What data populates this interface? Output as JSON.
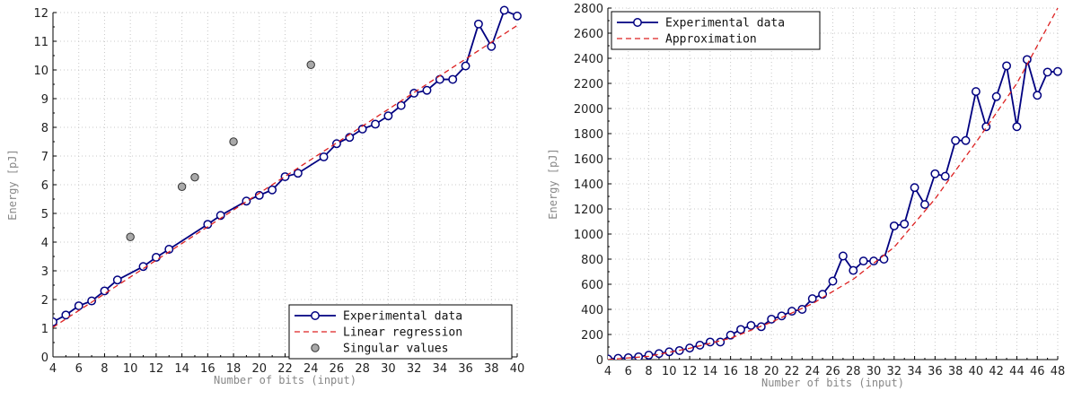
{
  "colors": {
    "experimental": "#000080",
    "regression": "#dd2222",
    "singular_fill": "#a9a9a9",
    "grid": "#c8c8c8"
  },
  "chart_data": [
    {
      "type": "line",
      "xlabel": "Number of bits (input)",
      "ylabel": "Energy [pJ]",
      "xlim": [
        4,
        40
      ],
      "ylim": [
        0,
        12
      ],
      "xticks": [
        4,
        6,
        8,
        10,
        12,
        14,
        16,
        18,
        20,
        22,
        24,
        26,
        28,
        30,
        32,
        34,
        36,
        38,
        40
      ],
      "yticks": [
        0,
        1,
        2,
        3,
        4,
        5,
        6,
        7,
        8,
        9,
        10,
        11,
        12
      ],
      "grid": true,
      "legend_position": "bottom-right",
      "series": [
        {
          "name": "Experimental data",
          "style": "line-markers",
          "x": [
            4,
            5,
            6,
            7,
            8,
            9,
            11,
            12,
            13,
            16,
            17,
            19,
            20,
            21,
            22,
            23,
            25,
            26,
            27,
            28,
            29,
            30,
            31,
            32,
            33,
            34,
            35,
            36,
            37,
            38,
            39,
            40
          ],
          "y": [
            1.22,
            1.46,
            1.78,
            1.95,
            2.3,
            2.68,
            3.15,
            3.47,
            3.75,
            4.62,
            4.93,
            5.43,
            5.63,
            5.82,
            6.28,
            6.4,
            6.97,
            7.43,
            7.65,
            7.94,
            8.11,
            8.4,
            8.76,
            9.19,
            9.29,
            9.67,
            9.67,
            10.14,
            11.6,
            10.82,
            12.08,
            11.88
          ]
        },
        {
          "name": "Linear regression",
          "style": "dashed",
          "x": [
            4,
            40
          ],
          "y": [
            1.03,
            11.55
          ]
        },
        {
          "name": "Singular values",
          "style": "markers",
          "x": [
            10,
            14,
            15,
            18,
            24
          ],
          "y": [
            4.18,
            5.93,
            6.26,
            7.5,
            10.18
          ]
        }
      ]
    },
    {
      "type": "line",
      "xlabel": "Number of bits (input)",
      "ylabel": "Energy [pJ]",
      "xlim": [
        4,
        48
      ],
      "ylim": [
        0,
        2800
      ],
      "xticks": [
        4,
        6,
        8,
        10,
        12,
        14,
        16,
        18,
        20,
        22,
        24,
        26,
        28,
        30,
        32,
        34,
        36,
        38,
        40,
        42,
        44,
        46,
        48
      ],
      "yticks": [
        0,
        200,
        400,
        600,
        800,
        1000,
        1200,
        1400,
        1600,
        1800,
        2000,
        2200,
        2400,
        2600,
        2800
      ],
      "grid": true,
      "legend_position": "top-left",
      "series": [
        {
          "name": "Experimental data",
          "style": "line-markers",
          "x": [
            4,
            5,
            6,
            7,
            8,
            9,
            10,
            11,
            12,
            13,
            14,
            15,
            16,
            17,
            18,
            19,
            20,
            21,
            22,
            23,
            24,
            25,
            26,
            27,
            28,
            29,
            30,
            31,
            32,
            33,
            34,
            35,
            36,
            37,
            38,
            39,
            40,
            41,
            42,
            43,
            44,
            45,
            46,
            47,
            48
          ],
          "y": [
            5,
            10,
            15,
            22,
            35,
            48,
            62,
            72,
            92,
            115,
            140,
            140,
            195,
            240,
            272,
            262,
            322,
            348,
            385,
            400,
            485,
            520,
            625,
            825,
            710,
            785,
            785,
            800,
            1065,
            1080,
            1370,
            1235,
            1480,
            1460,
            1745,
            1745,
            2135,
            1855,
            2095,
            2340,
            1855,
            2390,
            2105,
            2290,
            2295
          ]
        },
        {
          "name": "Approximation",
          "style": "dashed",
          "x": [
            4,
            8,
            12,
            16,
            20,
            24,
            28,
            32,
            36,
            40,
            44,
            48
          ],
          "y": [
            0,
            26,
            90,
            170,
            298,
            445,
            640,
            895,
            1280,
            1730,
            2200,
            2800
          ]
        }
      ]
    }
  ]
}
